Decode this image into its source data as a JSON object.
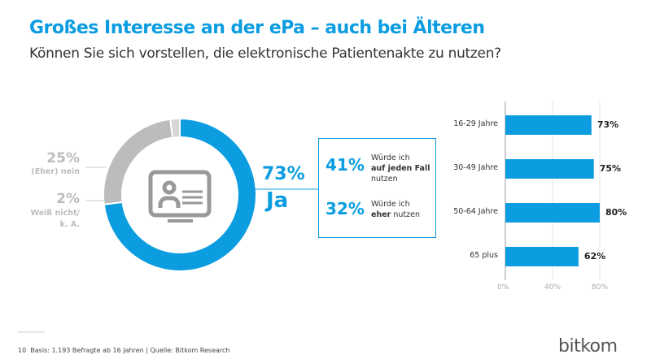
{
  "title": "Großes Interesse an der ePa – auch bei Älteren",
  "subtitle": "Können Sie sich vorstellen, die elektronische Patientenakte zu nutzen?",
  "colors": {
    "accent": "#0b9de0",
    "grey": "#bcbcbc"
  },
  "chart_data": [
    {
      "type": "pie",
      "variant": "donut",
      "center_icon": "patient-id-monitor-icon",
      "slices": [
        {
          "label": "Ja",
          "value": 73,
          "display": "73%",
          "color": "#0b9de0"
        },
        {
          "label": "(Eher) nein",
          "value": 25,
          "display": "25%",
          "color": "#bcbcbc"
        },
        {
          "label": "Weiß nicht/ k. A.",
          "value": 2,
          "display": "2%",
          "color": "#d6d6d6"
        }
      ],
      "breakdown": [
        {
          "value": "41%",
          "text_pre": "Würde ich",
          "text_bold": "auf jeden Fall",
          "text_post": "nutzen"
        },
        {
          "value": "32%",
          "text_pre": "Würde ich",
          "text_bold": "eher",
          "text_post": "nutzen"
        }
      ]
    },
    {
      "type": "bar",
      "orientation": "horizontal",
      "categories": [
        "16-29 Jahre",
        "30-49 Jahre",
        "50-64 Jahre",
        "65 plus"
      ],
      "values": [
        73,
        75,
        80,
        62
      ],
      "value_labels": [
        "73%",
        "75%",
        "80%",
        "62%"
      ],
      "xlim": [
        0,
        80
      ],
      "ticks": [
        "0%",
        "40%",
        "80%"
      ],
      "grid": true,
      "color": "#0b9de0"
    }
  ],
  "footer": {
    "page": "10",
    "text": "Basis: 1.193 Befragte ab 16 Jahren | Quelle: Bitkom Research"
  },
  "logo": "bitkom"
}
